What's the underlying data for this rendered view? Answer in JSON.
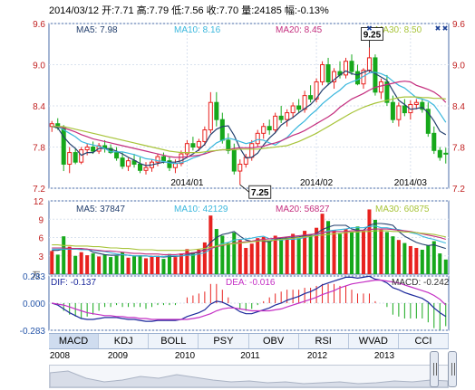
{
  "header": {
    "text": "2014/03/12 开:7.71  高:7.79  低:7.56  收:7.70  量:24185  幅:-0.13%"
  },
  "colors": {
    "up": "#e8221f",
    "down": "#16a81b",
    "ma5": "#24406e",
    "ma10": "#3ab7dd",
    "ma20": "#c42e7e",
    "ma30": "#a8c43a",
    "grid": "#d9e2ee",
    "axis": "#4b6ea9"
  },
  "tabs": [
    "MACD",
    "KDJ",
    "BOLL",
    "PSY",
    "OBV",
    "RSI",
    "WVAD",
    "CCI"
  ],
  "active_tab": "MACD",
  "timeline_years": [
    "2008",
    "2009",
    "2010",
    "2011",
    "2012",
    "2013"
  ],
  "chart_data": [
    {
      "type": "candlestick",
      "ylim": [
        7.2,
        9.6
      ],
      "y_ticks": [
        "9.6",
        "9.0",
        "8.4",
        "7.8",
        "7.2"
      ],
      "x_ticks": [
        "2014/01",
        "2014/02",
        "2014/03"
      ],
      "legend": [
        {
          "name": "MA5",
          "value": "7.98"
        },
        {
          "name": "MA10",
          "value": "8.16"
        },
        {
          "name": "MA20",
          "value": "8.45"
        },
        {
          "name": "MA30",
          "value": "8.50"
        }
      ],
      "annotations": [
        {
          "text": "9.25",
          "label": "high"
        },
        {
          "text": "7.25",
          "label": "low"
        }
      ],
      "ohlc": [
        [
          8.1,
          8.18,
          8.02,
          8.14
        ],
        [
          8.14,
          8.22,
          8.05,
          8.08
        ],
        [
          8.08,
          8.12,
          7.45,
          7.55
        ],
        [
          7.55,
          7.8,
          7.42,
          7.72
        ],
        [
          7.72,
          7.78,
          7.55,
          7.58
        ],
        [
          7.58,
          7.8,
          7.55,
          7.76
        ],
        [
          7.76,
          7.85,
          7.68,
          7.8
        ],
        [
          7.8,
          7.88,
          7.7,
          7.74
        ],
        [
          7.74,
          7.86,
          7.7,
          7.82
        ],
        [
          7.82,
          7.9,
          7.72,
          7.78
        ],
        [
          7.78,
          7.84,
          7.7,
          7.72
        ],
        [
          7.72,
          7.8,
          7.6,
          7.64
        ],
        [
          7.64,
          7.72,
          7.48,
          7.52
        ],
        [
          7.52,
          7.64,
          7.45,
          7.6
        ],
        [
          7.6,
          7.7,
          7.5,
          7.55
        ],
        [
          7.55,
          7.65,
          7.42,
          7.46
        ],
        [
          7.46,
          7.58,
          7.4,
          7.5
        ],
        [
          7.5,
          7.62,
          7.44,
          7.58
        ],
        [
          7.58,
          7.7,
          7.52,
          7.66
        ],
        [
          7.66,
          7.72,
          7.56,
          7.6
        ],
        [
          7.6,
          7.66,
          7.45,
          7.5
        ],
        [
          7.5,
          7.62,
          7.42,
          7.56
        ],
        [
          7.56,
          7.75,
          7.52,
          7.7
        ],
        [
          7.7,
          7.9,
          7.65,
          7.85
        ],
        [
          7.85,
          7.95,
          7.75,
          7.8
        ],
        [
          7.8,
          7.92,
          7.74,
          7.88
        ],
        [
          7.88,
          8.1,
          7.82,
          8.05
        ],
        [
          8.05,
          8.6,
          8.0,
          8.45
        ],
        [
          8.45,
          8.6,
          8.1,
          8.2
        ],
        [
          8.2,
          8.3,
          7.85,
          7.9
        ],
        [
          7.9,
          8.0,
          7.7,
          7.75
        ],
        [
          7.75,
          7.85,
          7.4,
          7.45
        ],
        [
          7.45,
          7.62,
          7.25,
          7.55
        ],
        [
          7.55,
          7.7,
          7.5,
          7.65
        ],
        [
          7.65,
          7.9,
          7.6,
          7.85
        ],
        [
          7.85,
          8.05,
          7.8,
          8.0
        ],
        [
          8.0,
          8.15,
          7.92,
          8.1
        ],
        [
          8.1,
          8.2,
          7.98,
          8.05
        ],
        [
          8.05,
          8.3,
          8.0,
          8.25
        ],
        [
          8.25,
          8.4,
          8.15,
          8.2
        ],
        [
          8.2,
          8.35,
          8.1,
          8.3
        ],
        [
          8.3,
          8.45,
          8.22,
          8.4
        ],
        [
          8.4,
          8.5,
          8.3,
          8.35
        ],
        [
          8.35,
          8.62,
          8.3,
          8.55
        ],
        [
          8.55,
          8.7,
          8.45,
          8.5
        ],
        [
          8.5,
          8.8,
          8.45,
          8.75
        ],
        [
          8.75,
          9.05,
          8.7,
          9.0
        ],
        [
          9.0,
          9.1,
          8.7,
          8.75
        ],
        [
          8.75,
          8.95,
          8.65,
          8.9
        ],
        [
          8.9,
          9.05,
          8.8,
          8.85
        ],
        [
          8.85,
          9.1,
          8.8,
          9.05
        ],
        [
          9.05,
          9.15,
          8.85,
          8.9
        ],
        [
          8.9,
          9.0,
          8.7,
          8.72
        ],
        [
          8.72,
          8.95,
          8.65,
          8.92
        ],
        [
          8.92,
          9.25,
          8.88,
          9.1
        ],
        [
          9.1,
          9.15,
          8.55,
          8.6
        ],
        [
          8.6,
          8.8,
          8.5,
          8.75
        ],
        [
          8.75,
          8.85,
          8.4,
          8.45
        ],
        [
          8.45,
          8.55,
          8.15,
          8.2
        ],
        [
          8.2,
          8.45,
          8.1,
          8.4
        ],
        [
          8.4,
          8.5,
          8.25,
          8.3
        ],
        [
          8.3,
          8.48,
          8.2,
          8.42
        ],
        [
          8.42,
          8.5,
          8.35,
          8.45
        ],
        [
          8.45,
          8.5,
          8.3,
          8.35
        ],
        [
          8.35,
          8.45,
          7.95,
          8.0
        ],
        [
          8.0,
          8.1,
          7.7,
          7.75
        ],
        [
          7.75,
          7.8,
          7.6,
          7.65
        ],
        [
          7.71,
          7.79,
          7.56,
          7.7
        ]
      ],
      "ma": {
        "MA5": [
          8.1,
          8.08,
          7.95,
          7.85,
          7.78,
          7.68,
          7.72,
          7.72,
          7.78,
          7.78,
          7.77,
          7.74,
          7.7,
          7.65,
          7.61,
          7.56,
          7.53,
          7.54,
          7.56,
          7.58,
          7.58,
          7.58,
          7.6,
          7.65,
          7.7,
          7.76,
          7.84,
          7.98,
          8.06,
          8.1,
          8.11,
          7.97,
          7.78,
          7.64,
          7.65,
          7.71,
          7.83,
          7.93,
          8.01,
          8.12,
          8.18,
          8.23,
          8.3,
          8.36,
          8.42,
          8.51,
          8.63,
          8.71,
          8.78,
          8.85,
          8.91,
          8.87,
          8.85,
          8.89,
          8.92,
          8.87,
          8.82,
          8.77,
          8.62,
          8.48,
          8.42,
          8.35,
          8.36,
          8.38,
          8.3,
          8.18,
          8.03,
          7.98
        ],
        "MA10": [
          8.1,
          8.1,
          8.05,
          8.0,
          7.95,
          7.88,
          7.85,
          7.83,
          7.81,
          7.78,
          7.73,
          7.73,
          7.73,
          7.71,
          7.69,
          7.66,
          7.63,
          7.62,
          7.6,
          7.59,
          7.57,
          7.56,
          7.57,
          7.6,
          7.64,
          7.67,
          7.71,
          7.79,
          7.86,
          7.9,
          7.93,
          7.91,
          7.88,
          7.85,
          7.87,
          7.91,
          7.9,
          7.86,
          7.83,
          7.89,
          7.94,
          8.03,
          8.11,
          8.18,
          8.27,
          8.34,
          8.43,
          8.5,
          8.57,
          8.63,
          8.71,
          8.75,
          8.78,
          8.83,
          8.88,
          8.89,
          8.87,
          8.83,
          8.76,
          8.7,
          8.66,
          8.59,
          8.52,
          8.5,
          8.47,
          8.41,
          8.29,
          8.16
        ],
        "MA20": [
          8.1,
          8.1,
          8.08,
          8.05,
          8.02,
          7.98,
          7.95,
          7.92,
          7.9,
          7.88,
          7.86,
          7.84,
          7.82,
          7.8,
          7.78,
          7.76,
          7.74,
          7.72,
          7.7,
          7.68,
          7.66,
          7.65,
          7.65,
          7.66,
          7.67,
          7.68,
          7.7,
          7.73,
          7.75,
          7.76,
          7.76,
          7.78,
          7.79,
          7.79,
          7.79,
          7.8,
          7.81,
          7.84,
          7.86,
          7.89,
          7.93,
          7.97,
          8.0,
          8.04,
          8.09,
          8.14,
          8.19,
          8.24,
          8.3,
          8.38,
          8.44,
          8.5,
          8.54,
          8.58,
          8.63,
          8.67,
          8.69,
          8.71,
          8.73,
          8.75,
          8.76,
          8.75,
          8.7,
          8.67,
          8.64,
          8.6,
          8.54,
          8.45
        ],
        "MA30": [
          8.1,
          8.1,
          8.1,
          8.08,
          8.06,
          8.04,
          8.02,
          8.0,
          7.98,
          7.96,
          7.94,
          7.92,
          7.9,
          7.88,
          7.86,
          7.84,
          7.82,
          7.8,
          7.78,
          7.76,
          7.74,
          7.73,
          7.72,
          7.72,
          7.72,
          7.72,
          7.73,
          7.74,
          7.75,
          7.76,
          7.76,
          7.76,
          7.77,
          7.77,
          7.77,
          7.77,
          7.78,
          7.79,
          7.8,
          7.81,
          7.82,
          7.85,
          7.88,
          7.92,
          7.96,
          8.0,
          8.05,
          8.1,
          8.15,
          8.2,
          8.25,
          8.3,
          8.34,
          8.38,
          8.41,
          8.44,
          8.46,
          8.48,
          8.5,
          8.52,
          8.53,
          8.53,
          8.53,
          8.52,
          8.52,
          8.51,
          8.51,
          8.5
        ]
      }
    },
    {
      "type": "bar",
      "name": "volume",
      "ylim": [
        0,
        12
      ],
      "y_ticks": [
        "12",
        "9",
        "6",
        "3"
      ],
      "unit_label": "万",
      "legend": [
        {
          "name": "MA5",
          "value": "37847"
        },
        {
          "name": "MA10",
          "value": "42129"
        },
        {
          "name": "MA20",
          "value": "56827"
        },
        {
          "name": "MA30",
          "value": "60875"
        }
      ],
      "values": [
        3.8,
        3.2,
        6.2,
        4.5,
        3.0,
        3.6,
        3.1,
        3.4,
        2.9,
        3.2,
        2.8,
        3.0,
        3.6,
        2.7,
        2.9,
        3.1,
        2.6,
        2.9,
        3.0,
        2.5,
        3.3,
        2.8,
        3.4,
        4.1,
        3.6,
        4.0,
        5.2,
        9.6,
        7.4,
        6.3,
        5.1,
        6.8,
        5.6,
        4.3,
        5.0,
        5.9,
        6.1,
        5.4,
        6.3,
        5.8,
        6.0,
        6.6,
        5.9,
        7.1,
        6.4,
        7.6,
        9.9,
        8.7,
        7.2,
        6.6,
        7.4,
        6.9,
        7.8,
        7.1,
        10.6,
        8.9,
        7.3,
        6.9,
        6.2,
        5.6,
        5.1,
        4.6,
        4.3,
        4.0,
        4.7,
        5.4,
        3.4,
        2.4
      ],
      "ma": {
        "MA5": [
          3.9,
          3.9,
          4.1,
          4.1,
          4.1,
          4.1,
          4.1,
          3.6,
          3.4,
          3.2,
          3.1,
          3.1,
          3.2,
          3.1,
          3.0,
          3.0,
          3.0,
          2.9,
          2.9,
          2.8,
          2.9,
          2.9,
          3.0,
          3.2,
          3.4,
          3.6,
          4.1,
          5.2,
          6.0,
          6.5,
          6.7,
          7.0,
          6.2,
          5.6,
          5.4,
          5.5,
          5.4,
          5.3,
          5.7,
          5.9,
          5.9,
          6.0,
          6.1,
          6.3,
          6.4,
          6.7,
          7.3,
          7.7,
          8.0,
          8.0,
          8.0,
          7.4,
          7.2,
          7.2,
          8.0,
          8.3,
          8.3,
          8.2,
          8.0,
          7.0,
          6.2,
          5.7,
          5.2,
          4.9,
          4.7,
          4.8,
          4.5,
          4.2
        ],
        "MA10": [
          4.1,
          4.1,
          4.1,
          4.1,
          4.1,
          4.0,
          4.0,
          3.9,
          3.8,
          3.7,
          3.5,
          3.3,
          3.2,
          3.1,
          3.0,
          3.0,
          3.0,
          2.9,
          2.9,
          2.9,
          3.0,
          3.0,
          3.0,
          3.1,
          3.1,
          3.3,
          3.5,
          4.1,
          4.6,
          5.0,
          5.2,
          5.6,
          5.7,
          5.8,
          5.9,
          6.1,
          6.2,
          5.8,
          5.6,
          5.6,
          5.7,
          5.7,
          5.8,
          6.0,
          6.2,
          6.4,
          6.8,
          7.1,
          7.2,
          7.3,
          7.4,
          7.6,
          7.6,
          7.6,
          7.8,
          7.9,
          7.6,
          7.6,
          7.4,
          7.3,
          7.1,
          6.8,
          6.6,
          6.2,
          5.9,
          5.7,
          5.4,
          5.1
        ],
        "MA20": [
          4.3,
          4.3,
          4.3,
          4.2,
          4.2,
          4.2,
          4.1,
          4.0,
          3.9,
          3.8,
          3.8,
          3.7,
          3.6,
          3.5,
          3.4,
          3.4,
          3.3,
          3.3,
          3.3,
          3.2,
          3.2,
          3.2,
          3.3,
          3.4,
          3.5,
          3.7,
          3.9,
          4.2,
          4.5,
          4.7,
          4.9,
          5.1,
          5.2,
          5.3,
          5.4,
          5.6,
          5.7,
          5.8,
          5.9,
          6.0,
          6.1,
          6.2,
          6.3,
          6.4,
          6.5,
          6.6,
          6.8,
          6.9,
          7.0,
          7.0,
          7.0,
          7.1,
          7.1,
          7.2,
          7.3,
          7.4,
          7.4,
          7.4,
          7.3,
          7.2,
          7.1,
          7.0,
          6.8,
          6.6,
          6.4,
          6.2,
          6.0,
          5.7
        ],
        "MA30": [
          4.8,
          4.8,
          4.7,
          4.7,
          4.6,
          4.6,
          4.6,
          4.5,
          4.5,
          4.4,
          4.3,
          4.3,
          4.2,
          4.2,
          4.1,
          4.0,
          4.0,
          4.0,
          3.9,
          3.9,
          3.9,
          3.9,
          3.9,
          3.9,
          4.0,
          4.1,
          4.2,
          4.4,
          4.6,
          4.8,
          4.9,
          5.0,
          5.1,
          5.2,
          5.3,
          5.4,
          5.5,
          5.5,
          5.6,
          5.7,
          5.8,
          5.9,
          6.0,
          6.1,
          6.2,
          6.3,
          6.4,
          6.5,
          6.6,
          6.7,
          6.8,
          6.9,
          6.9,
          7.0,
          7.0,
          7.1,
          7.1,
          7.1,
          7.0,
          7.0,
          6.9,
          6.9,
          6.8,
          6.7,
          6.6,
          6.5,
          6.3,
          6.1
        ]
      }
    },
    {
      "type": "line",
      "name": "MACD",
      "ylim": [
        -0.283,
        0.283
      ],
      "y_ticks": [
        "0.283",
        "0.000",
        "-0.283"
      ],
      "legend": [
        {
          "name": "DIF",
          "value": "-0.137"
        },
        {
          "name": "DEA",
          "value": "-0.016"
        },
        {
          "name": "MACD",
          "value": "-0.242"
        }
      ],
      "dif": [
        0.0,
        -0.02,
        -0.06,
        -0.1,
        -0.13,
        -0.16,
        -0.17,
        -0.17,
        -0.16,
        -0.15,
        -0.15,
        -0.15,
        -0.16,
        -0.17,
        -0.17,
        -0.18,
        -0.19,
        -0.19,
        -0.18,
        -0.18,
        -0.18,
        -0.18,
        -0.17,
        -0.14,
        -0.12,
        -0.1,
        -0.07,
        -0.01,
        0.02,
        0.01,
        -0.02,
        -0.05,
        -0.09,
        -0.11,
        -0.11,
        -0.09,
        -0.07,
        -0.05,
        -0.02,
        0.0,
        0.03,
        0.05,
        0.07,
        0.1,
        0.12,
        0.15,
        0.19,
        0.21,
        0.23,
        0.25,
        0.27,
        0.27,
        0.26,
        0.27,
        0.28,
        0.25,
        0.24,
        0.21,
        0.16,
        0.14,
        0.11,
        0.09,
        0.07,
        0.05,
        0.01,
        -0.05,
        -0.1,
        -0.14
      ],
      "dea": [
        0.0,
        -0.01,
        -0.02,
        -0.04,
        -0.06,
        -0.08,
        -0.1,
        -0.11,
        -0.12,
        -0.13,
        -0.13,
        -0.14,
        -0.14,
        -0.15,
        -0.15,
        -0.16,
        -0.16,
        -0.17,
        -0.17,
        -0.17,
        -0.17,
        -0.17,
        -0.17,
        -0.17,
        -0.16,
        -0.15,
        -0.13,
        -0.11,
        -0.08,
        -0.06,
        -0.05,
        -0.05,
        -0.06,
        -0.07,
        -0.08,
        -0.08,
        -0.08,
        -0.08,
        -0.07,
        -0.06,
        -0.04,
        -0.02,
        0.0,
        0.02,
        0.04,
        0.06,
        0.09,
        0.11,
        0.13,
        0.16,
        0.18,
        0.2,
        0.21,
        0.22,
        0.23,
        0.24,
        0.24,
        0.23,
        0.22,
        0.21,
        0.19,
        0.17,
        0.15,
        0.13,
        0.11,
        0.08,
        0.04,
        -0.02
      ]
    }
  ]
}
